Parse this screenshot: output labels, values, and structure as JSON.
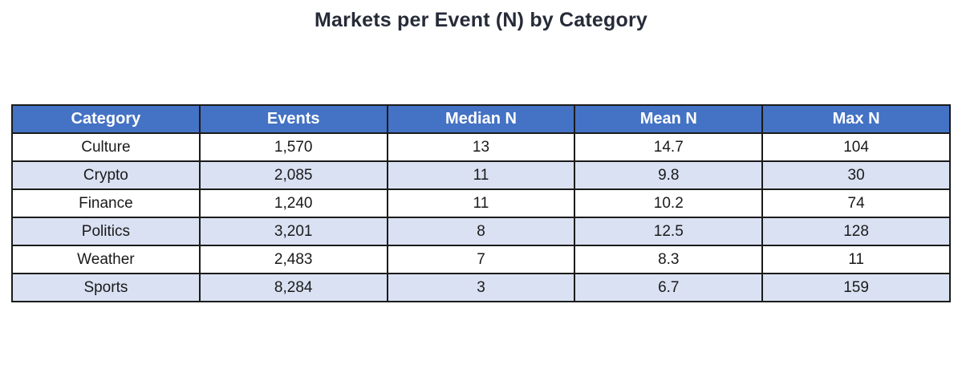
{
  "title": "Markets per Event (N) by Category",
  "colors": {
    "header_bg": "#4472C4",
    "header_text": "#FFFFFF",
    "band_row_bg": "#D9E1F2",
    "plain_row_bg": "#FFFFFF",
    "border": "#1B1B1B",
    "title_text": "#262B38",
    "cell_text": "#1A1A1A"
  },
  "table": {
    "headers": [
      "Category",
      "Events",
      "Median N",
      "Mean N",
      "Max N"
    ],
    "rows": [
      [
        "Culture",
        "1,570",
        "13",
        "14.7",
        "104"
      ],
      [
        "Crypto",
        "2,085",
        "11",
        "9.8",
        "30"
      ],
      [
        "Finance",
        "1,240",
        "11",
        "10.2",
        "74"
      ],
      [
        "Politics",
        "3,201",
        "8",
        "12.5",
        "128"
      ],
      [
        "Weather",
        "2,483",
        "7",
        "8.3",
        "11"
      ],
      [
        "Sports",
        "8,284",
        "3",
        "6.7",
        "159"
      ]
    ]
  },
  "chart_data": {
    "type": "table",
    "title": "Markets per Event (N) by Category",
    "columns": [
      "Category",
      "Events",
      "Median N",
      "Mean N",
      "Max N"
    ],
    "rows": [
      {
        "category": "Culture",
        "events": 1570,
        "median_n": 13,
        "mean_n": 14.7,
        "max_n": 104
      },
      {
        "category": "Crypto",
        "events": 2085,
        "median_n": 11,
        "mean_n": 9.8,
        "max_n": 30
      },
      {
        "category": "Finance",
        "events": 1240,
        "median_n": 11,
        "mean_n": 10.2,
        "max_n": 74
      },
      {
        "category": "Politics",
        "events": 3201,
        "median_n": 8,
        "mean_n": 12.5,
        "max_n": 128
      },
      {
        "category": "Weather",
        "events": 2483,
        "median_n": 7,
        "mean_n": 8.3,
        "max_n": 11
      },
      {
        "category": "Sports",
        "events": 8284,
        "median_n": 3,
        "mean_n": 6.7,
        "max_n": 159
      }
    ],
    "layout": {
      "header_style": "blue banner, white bold text",
      "row_banding": "alternating white and light blue starting with white",
      "grid": "on, dark 2px borders",
      "alignment": "all cells centered"
    }
  }
}
